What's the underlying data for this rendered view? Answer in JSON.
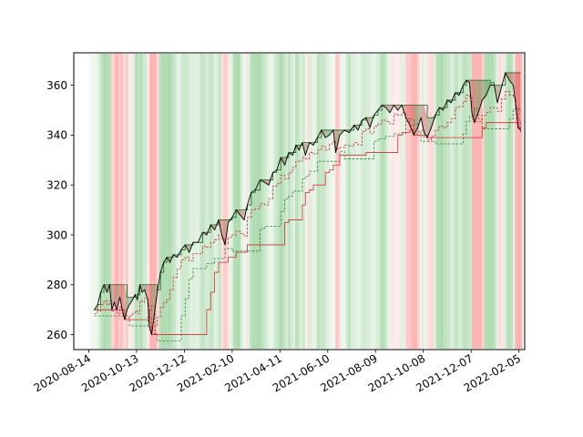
{
  "chart_data": {
    "type": "line",
    "title": "",
    "xlabel": "",
    "ylabel": "",
    "x_range": [
      "2020-08-14",
      "2022-02-14"
    ],
    "ylim": [
      254,
      373
    ],
    "grid": false,
    "legend": "none",
    "x_ticks": [
      "2020-08-14",
      "2020-10-13",
      "2020-12-12",
      "2021-02-10",
      "2021-04-11",
      "2021-06-10",
      "2021-08-09",
      "2021-10-08",
      "2021-12-07",
      "2022-02-05"
    ],
    "y_ticks": [
      260,
      280,
      300,
      320,
      340,
      360
    ],
    "colors": {
      "price": "#000000",
      "price_fill_up": "#2e7d32",
      "price_fill_down": "#c62828",
      "stop_upper": "#1b5e20",
      "stop_lower": "#d32f2f",
      "ma_fast": "#c62828",
      "ma_slow": "#2e7d32",
      "band_green": "#4caf50",
      "band_red": "#ff5252"
    },
    "series": [
      {
        "values": [
          [
            "2020-08-21",
            270
          ],
          [
            "2020-08-25",
            272
          ],
          [
            "2020-08-29",
            277
          ],
          [
            "2020-09-02",
            280
          ],
          [
            "2020-09-06",
            277
          ],
          [
            "2020-09-09",
            280
          ],
          [
            "2020-09-12",
            270
          ],
          [
            "2020-09-15",
            273
          ],
          [
            "2020-09-18",
            270
          ],
          [
            "2020-09-22",
            275
          ],
          [
            "2020-09-25",
            270
          ],
          [
            "2020-09-28",
            266
          ],
          [
            "2020-10-01",
            270
          ],
          [
            "2020-10-04",
            272
          ],
          [
            "2020-10-08",
            274
          ],
          [
            "2020-10-11",
            276
          ],
          [
            "2020-10-14",
            274
          ],
          [
            "2020-10-17",
            280
          ],
          [
            "2020-10-20",
            277
          ],
          [
            "2020-10-23",
            278
          ],
          [
            "2020-10-27",
            274
          ],
          [
            "2020-10-29",
            263
          ],
          [
            "2020-11-01",
            260
          ],
          [
            "2020-11-05",
            270
          ],
          [
            "2020-11-08",
            277
          ],
          [
            "2020-11-12",
            285
          ],
          [
            "2020-11-16",
            289
          ],
          [
            "2020-11-20",
            291
          ],
          [
            "2020-11-24",
            289
          ],
          [
            "2020-11-28",
            292
          ],
          [
            "2020-12-03",
            291
          ],
          [
            "2020-12-08",
            294
          ],
          [
            "2020-12-13",
            296
          ],
          [
            "2020-12-18",
            293
          ],
          [
            "2020-12-23",
            297
          ],
          [
            "2020-12-29",
            297
          ],
          [
            "2021-01-04",
            301
          ],
          [
            "2021-01-09",
            300
          ],
          [
            "2021-01-14",
            304
          ],
          [
            "2021-01-19",
            302
          ],
          [
            "2021-01-24",
            306
          ],
          [
            "2021-01-28",
            300
          ],
          [
            "2021-02-01",
            296
          ],
          [
            "2021-02-05",
            305
          ],
          [
            "2021-02-10",
            307
          ],
          [
            "2021-02-15",
            310
          ],
          [
            "2021-02-20",
            308
          ],
          [
            "2021-02-25",
            306
          ],
          [
            "2021-03-01",
            312
          ],
          [
            "2021-03-06",
            317
          ],
          [
            "2021-03-11",
            318
          ],
          [
            "2021-03-17",
            322
          ],
          [
            "2021-03-23",
            321
          ],
          [
            "2021-03-28",
            320
          ],
          [
            "2021-04-02",
            325
          ],
          [
            "2021-04-07",
            326
          ],
          [
            "2021-04-12",
            331
          ],
          [
            "2021-04-17",
            328
          ],
          [
            "2021-04-22",
            333
          ],
          [
            "2021-04-27",
            332
          ],
          [
            "2021-05-01",
            336
          ],
          [
            "2021-05-05",
            334
          ],
          [
            "2021-05-09",
            337
          ],
          [
            "2021-05-13",
            332
          ],
          [
            "2021-05-18",
            337
          ],
          [
            "2021-05-23",
            336
          ],
          [
            "2021-05-28",
            339
          ],
          [
            "2021-06-02",
            342
          ],
          [
            "2021-06-07",
            339
          ],
          [
            "2021-06-12",
            340
          ],
          [
            "2021-06-17",
            342
          ],
          [
            "2021-06-20",
            333
          ],
          [
            "2021-06-25",
            340
          ],
          [
            "2021-07-01",
            342
          ],
          [
            "2021-07-07",
            341
          ],
          [
            "2021-07-13",
            344
          ],
          [
            "2021-07-18",
            342
          ],
          [
            "2021-07-23",
            346
          ],
          [
            "2021-07-28",
            347
          ],
          [
            "2021-08-02",
            343
          ],
          [
            "2021-08-07",
            348
          ],
          [
            "2021-08-12",
            350
          ],
          [
            "2021-08-17",
            352
          ],
          [
            "2021-08-22",
            351
          ],
          [
            "2021-08-27",
            349
          ],
          [
            "2021-09-01",
            352
          ],
          [
            "2021-09-06",
            350
          ],
          [
            "2021-09-11",
            352
          ],
          [
            "2021-09-16",
            347
          ],
          [
            "2021-09-21",
            344
          ],
          [
            "2021-09-26",
            340
          ],
          [
            "2021-10-01",
            343
          ],
          [
            "2021-10-05",
            347
          ],
          [
            "2021-10-09",
            341
          ],
          [
            "2021-10-13",
            339
          ],
          [
            "2021-10-18",
            343
          ],
          [
            "2021-10-23",
            348
          ],
          [
            "2021-10-28",
            351
          ],
          [
            "2021-11-02",
            350
          ],
          [
            "2021-11-07",
            354
          ],
          [
            "2021-11-12",
            353
          ],
          [
            "2021-11-17",
            357
          ],
          [
            "2021-11-22",
            356
          ],
          [
            "2021-11-27",
            360
          ],
          [
            "2021-12-01",
            362
          ],
          [
            "2021-12-05",
            361
          ],
          [
            "2021-12-08",
            349
          ],
          [
            "2021-12-11",
            345
          ],
          [
            "2021-12-16",
            349
          ],
          [
            "2021-12-21",
            354
          ],
          [
            "2021-12-26",
            356
          ],
          [
            "2021-12-31",
            360
          ],
          [
            "2022-01-05",
            360
          ],
          [
            "2022-01-09",
            353
          ],
          [
            "2022-01-14",
            359
          ],
          [
            "2022-01-19",
            365
          ],
          [
            "2022-01-24",
            362
          ],
          [
            "2022-01-29",
            360
          ],
          [
            "2022-02-01",
            352
          ],
          [
            "2022-02-04",
            343
          ],
          [
            "2022-02-07",
            342
          ]
        ]
      }
    ]
  }
}
